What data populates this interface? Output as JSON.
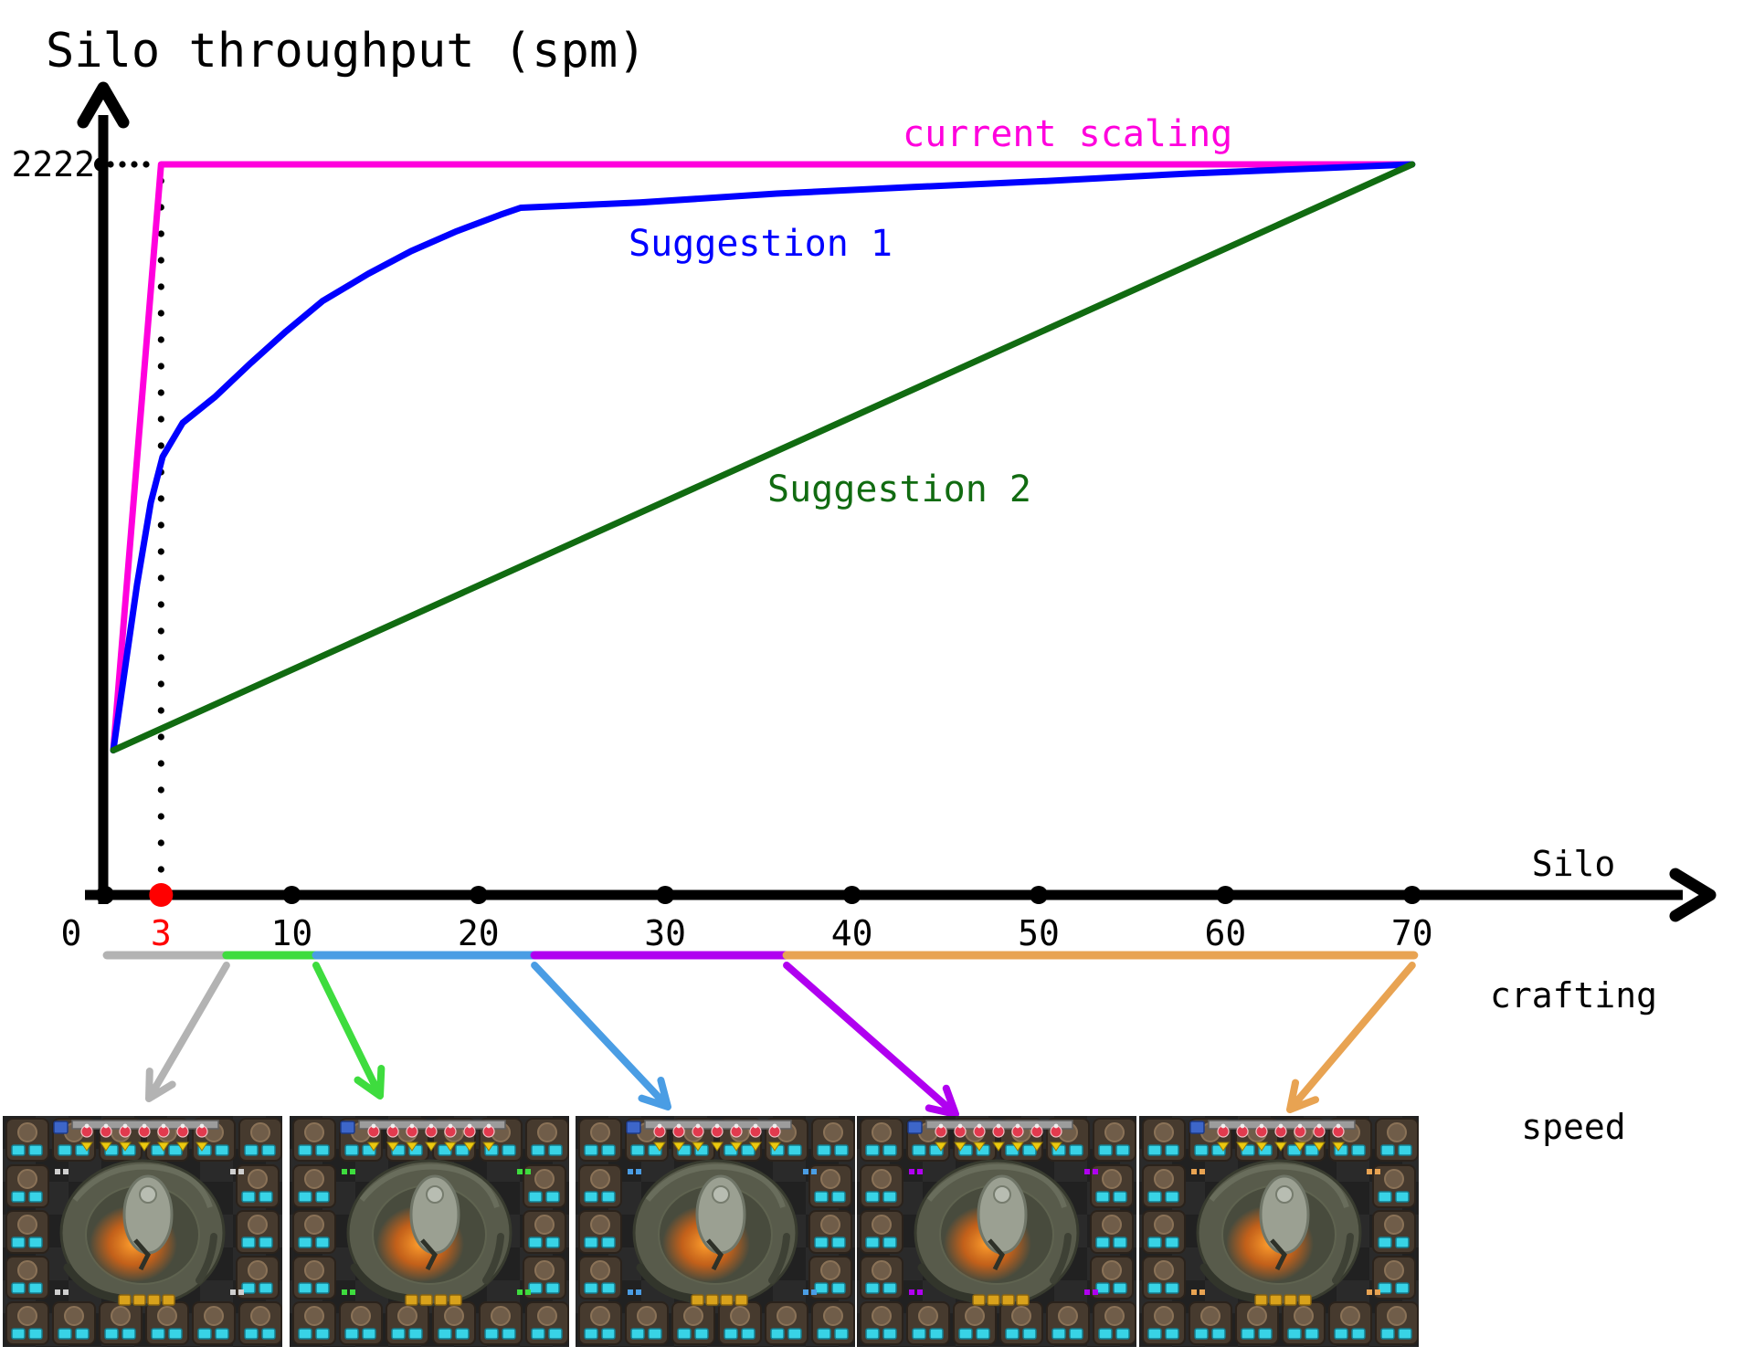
{
  "title": "Silo throughput (spm)",
  "y_axis": {
    "max_label": "2222"
  },
  "x_axis": {
    "label_lines": [
      "Silo",
      "crafting",
      "speed"
    ],
    "ticks": [
      {
        "value": 0,
        "label": "0",
        "color": "#000000",
        "dot_color": "#000000"
      },
      {
        "value": 3,
        "label": "3",
        "color": "#ff0000",
        "dot_color": "#ff0000"
      },
      {
        "value": 10,
        "label": "10",
        "color": "#000000",
        "dot_color": "#000000"
      },
      {
        "value": 20,
        "label": "20",
        "color": "#000000",
        "dot_color": "#000000"
      },
      {
        "value": 30,
        "label": "30",
        "color": "#000000",
        "dot_color": "#000000"
      },
      {
        "value": 40,
        "label": "40",
        "color": "#000000",
        "dot_color": "#000000"
      },
      {
        "value": 50,
        "label": "50",
        "color": "#000000",
        "dot_color": "#000000"
      },
      {
        "value": 60,
        "label": "60",
        "color": "#000000",
        "dot_color": "#000000"
      },
      {
        "value": 70,
        "label": "70",
        "color": "#000000",
        "dot_color": "#000000"
      }
    ]
  },
  "chart_data": {
    "type": "line",
    "title": "Silo throughput (spm)",
    "xlabel": "Silo crafting speed",
    "ylabel": "Silo throughput (spm)",
    "xlim": [
      0,
      76
    ],
    "ylim": [
      0,
      2500
    ],
    "x_ticks": [
      0,
      3,
      10,
      20,
      30,
      40,
      50,
      60,
      70
    ],
    "highlighted_tick": 3,
    "reference_value": 2222,
    "grid": false,
    "series": [
      {
        "name": "current scaling",
        "color": "#ff00dd",
        "points": [
          [
            0.44,
            440
          ],
          [
            3.0,
            2222
          ],
          [
            70.0,
            2222
          ]
        ]
      },
      {
        "name": "Suggestion 1",
        "color": "#0000ff",
        "points": [
          [
            0.44,
            440
          ],
          [
            1.71,
            944
          ],
          [
            2.45,
            1194
          ],
          [
            3.08,
            1333
          ],
          [
            4.16,
            1436
          ],
          [
            5.87,
            1514
          ],
          [
            7.83,
            1619
          ],
          [
            9.69,
            1714
          ],
          [
            11.64,
            1806
          ],
          [
            14.09,
            1889
          ],
          [
            16.39,
            1958
          ],
          [
            18.84,
            2019
          ],
          [
            21.18,
            2069
          ],
          [
            22.26,
            2090
          ],
          [
            28.62,
            2106
          ],
          [
            35.96,
            2133
          ],
          [
            43.3,
            2153
          ],
          [
            50.64,
            2172
          ],
          [
            57.97,
            2194
          ],
          [
            65.31,
            2211
          ],
          [
            70.0,
            2222
          ]
        ]
      },
      {
        "name": "Suggestion 2",
        "color": "#116b11",
        "points": [
          [
            0.44,
            440
          ],
          [
            70.0,
            2222
          ]
        ]
      }
    ],
    "speed_range_segments": [
      {
        "range": [
          0.1,
          6.5
        ],
        "color": "#b3b3b3"
      },
      {
        "range": [
          6.5,
          11.3
        ],
        "color": "#3edc3e"
      },
      {
        "range": [
          11.3,
          23.0
        ],
        "color": "#4a9de4"
      },
      {
        "range": [
          23.0,
          36.5
        ],
        "color": "#b000f0"
      },
      {
        "range": [
          36.5,
          70.1
        ],
        "color": "#e8a352"
      }
    ]
  },
  "panels": [
    {
      "name": "silo-screenshot-1",
      "accent": "#cfcfcf"
    },
    {
      "name": "silo-screenshot-2",
      "accent": "#3edc3e"
    },
    {
      "name": "silo-screenshot-3",
      "accent": "#4a9de4"
    },
    {
      "name": "silo-screenshot-4",
      "accent": "#b000f0"
    },
    {
      "name": "silo-screenshot-5",
      "accent": "#e8a352"
    }
  ]
}
